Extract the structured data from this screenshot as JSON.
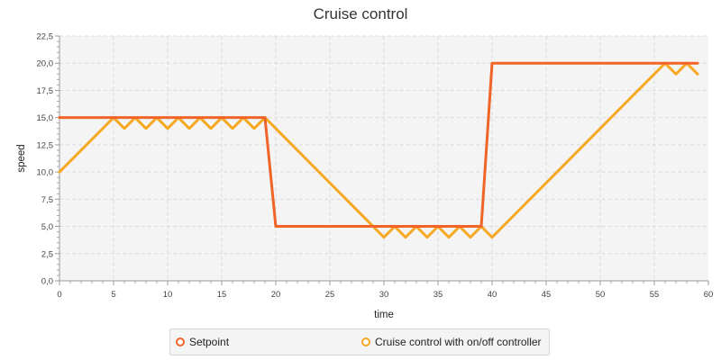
{
  "colors": {
    "series1": "#f06428",
    "series2": "#f7a823",
    "plot_bg": "#f4f4f4",
    "grid": "#dcdcdc"
  },
  "chart_data": {
    "type": "line",
    "title": "Cruise control",
    "xlabel": "time",
    "ylabel": "speed",
    "xlim": [
      0,
      60
    ],
    "ylim": [
      0,
      22.5
    ],
    "x_ticks": [
      "0",
      "5",
      "10",
      "15",
      "20",
      "25",
      "30",
      "35",
      "40",
      "45",
      "50",
      "55",
      "60"
    ],
    "y_ticks": [
      "0,0",
      "2,5",
      "5,0",
      "7,5",
      "10,0",
      "12,5",
      "15,0",
      "17,5",
      "20,0",
      "22,5"
    ],
    "grid": true,
    "legend_position": "bottom",
    "series": [
      {
        "name": "Setpoint",
        "x": [
          0,
          19,
          20,
          39,
          40,
          59
        ],
        "y": [
          15,
          15,
          5,
          5,
          20,
          20
        ]
      },
      {
        "name": "Cruise control with on/off controller",
        "x": [
          0,
          5,
          6,
          7,
          8,
          9,
          10,
          11,
          12,
          13,
          14,
          15,
          16,
          17,
          18,
          19,
          29,
          30,
          31,
          32,
          33,
          34,
          35,
          36,
          37,
          38,
          39,
          40,
          56,
          57,
          58,
          59
        ],
        "y": [
          10,
          15,
          14,
          15,
          14,
          15,
          14,
          15,
          14,
          15,
          14,
          15,
          14,
          15,
          14,
          15,
          5,
          4,
          5,
          4,
          5,
          4,
          5,
          4,
          5,
          4,
          5,
          4,
          20,
          19,
          20,
          19
        ]
      }
    ]
  }
}
